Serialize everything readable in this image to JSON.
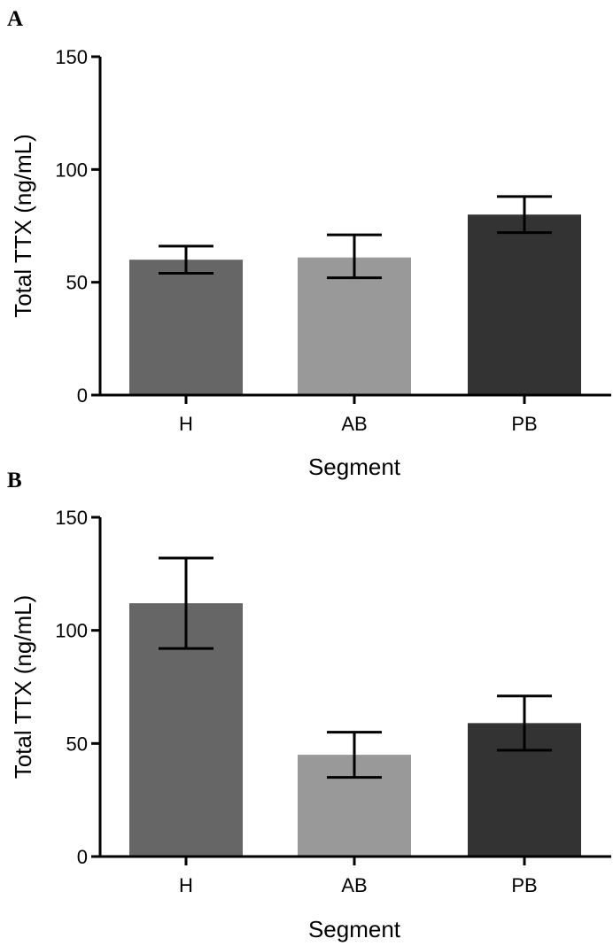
{
  "chart_data": [
    {
      "panel": "A",
      "type": "bar",
      "categories": [
        "H",
        "AB",
        "PB"
      ],
      "values": [
        60,
        61,
        80
      ],
      "errors": [
        [
          54,
          66
        ],
        [
          52,
          71
        ],
        [
          72,
          88
        ]
      ],
      "colors": [
        "#666666",
        "#999999",
        "#333333"
      ],
      "yticks": [
        0,
        50,
        100,
        150
      ],
      "ylim": [
        0,
        150
      ],
      "xlabel": "Segment",
      "ylabel": "Total TTX (ng/mL)"
    },
    {
      "panel": "B",
      "type": "bar",
      "categories": [
        "H",
        "AB",
        "PB"
      ],
      "values": [
        112,
        45,
        59
      ],
      "errors": [
        [
          92,
          132
        ],
        [
          35,
          55
        ],
        [
          47,
          71
        ]
      ],
      "colors": [
        "#666666",
        "#999999",
        "#333333"
      ],
      "yticks": [
        0,
        50,
        100,
        150
      ],
      "ylim": [
        0,
        150
      ],
      "xlabel": "Segment",
      "ylabel": "Total TTX (ng/mL)"
    }
  ]
}
